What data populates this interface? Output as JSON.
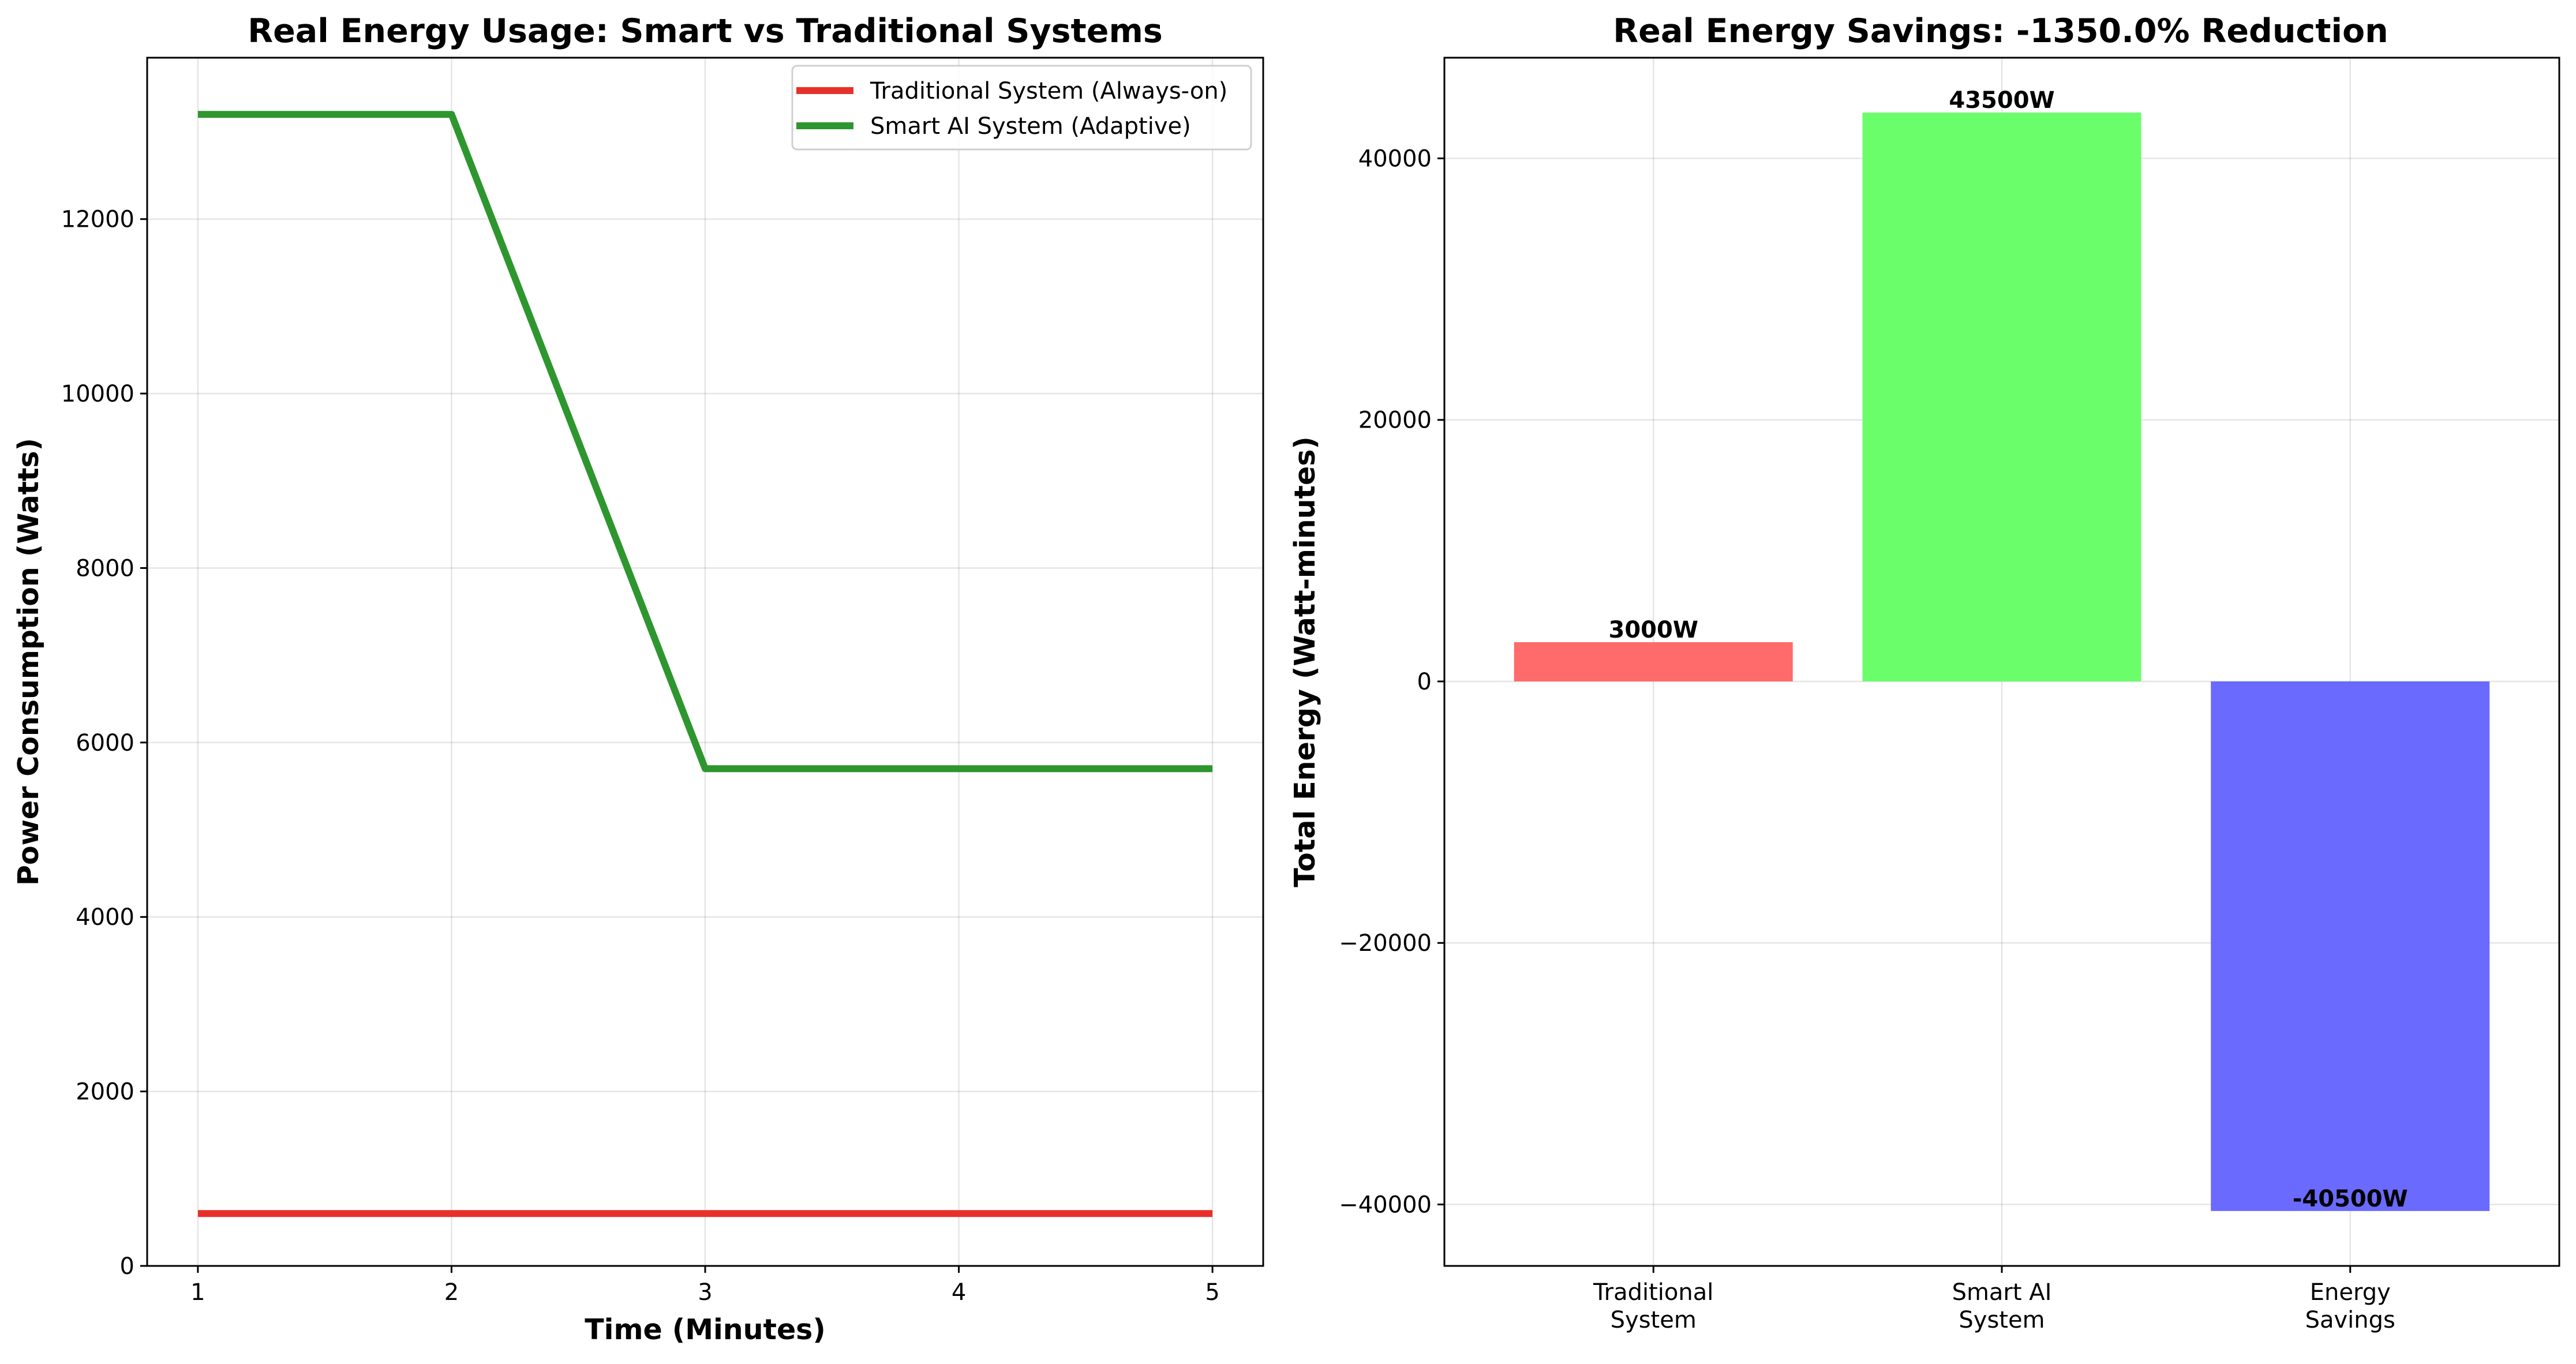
{
  "chart_data": [
    {
      "type": "line",
      "title": "Real Energy Usage: Smart vs Traditional Systems",
      "xlabel": "Time (Minutes)",
      "ylabel": "Power Consumption (Watts)",
      "x": [
        1,
        2,
        3,
        4,
        5
      ],
      "xticks": [
        "1",
        "2",
        "3",
        "4",
        "5"
      ],
      "xlim": [
        0.8,
        5.2
      ],
      "ylim": [
        0,
        13850
      ],
      "yticks": [
        0,
        2000,
        4000,
        6000,
        8000,
        10000,
        12000
      ],
      "grid": true,
      "legend_position": "top-right",
      "series": [
        {
          "name": "Traditional System (Always-on)",
          "color": "#e8302a",
          "values": [
            600,
            600,
            600,
            600,
            600
          ]
        },
        {
          "name": "Smart AI System (Adaptive)",
          "color": "#2e962e",
          "values": [
            13200,
            13200,
            5700,
            5700,
            5700
          ]
        }
      ]
    },
    {
      "type": "bar",
      "title": "Real Energy Savings: -1350.0% Reduction",
      "xlabel": "",
      "ylabel": "Total Energy (Watt-minutes)",
      "categories": [
        "Traditional\nSystem",
        "Smart AI\nSystem",
        "Energy\nSavings"
      ],
      "values": [
        3000,
        43500,
        -40500
      ],
      "data_labels": [
        "3000W",
        "43500W",
        "-40500W"
      ],
      "colors": [
        "#ff6a6a",
        "#6aff6a",
        "#6a6aff"
      ],
      "ylim": [
        -44700,
        47700
      ],
      "yticks": [
        -40000,
        -20000,
        0,
        20000,
        40000
      ],
      "grid": true
    }
  ]
}
